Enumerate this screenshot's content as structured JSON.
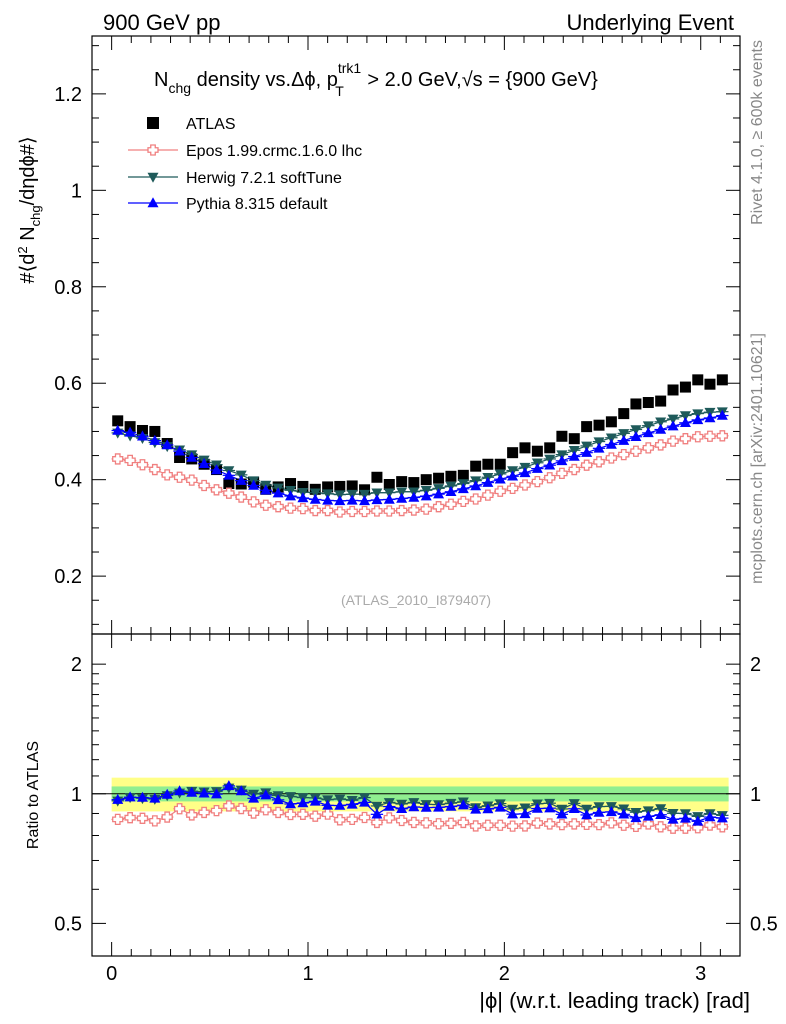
{
  "header": {
    "left": "900 GeV pp",
    "right": "Underlying Event"
  },
  "side_labels": {
    "rivet": "Rivet 4.1.0, ≥ 600k events",
    "mcplots": "mcplots.cern.ch [arXiv:2401.10621]"
  },
  "chart_data": [
    {
      "type": "scatter",
      "panel": "main",
      "title": {
        "prefix": "N",
        "sub1": "chg",
        "mid": " density vs.Δϕ, p",
        "sup": "trk1",
        "sub2": "T",
        "tail": " > 2.0 GeV,",
        "sqrt": "√s",
        "end": " = {900 GeV}"
      },
      "ylabel": "#⟨d² N_chg/dηdϕ#⟩",
      "xlim": [
        -0.1,
        3.2
      ],
      "ylim": [
        0.08,
        1.32
      ],
      "yticks": [
        "0.2",
        "0.4",
        "0.6",
        "0.8",
        "1",
        "1.2"
      ],
      "watermark": "(ATLAS_2010_I879407)",
      "x": [
        0.031,
        0.094,
        0.157,
        0.22,
        0.283,
        0.346,
        0.408,
        0.471,
        0.534,
        0.597,
        0.66,
        0.723,
        0.785,
        0.848,
        0.911,
        0.974,
        1.037,
        1.1,
        1.162,
        1.225,
        1.288,
        1.351,
        1.414,
        1.477,
        1.539,
        1.602,
        1.665,
        1.728,
        1.791,
        1.854,
        1.916,
        1.979,
        2.042,
        2.105,
        2.168,
        2.231,
        2.293,
        2.356,
        2.419,
        2.482,
        2.545,
        2.608,
        2.67,
        2.733,
        2.796,
        2.859,
        2.922,
        2.985,
        3.047,
        3.11
      ],
      "series": [
        {
          "name": "ATLAS",
          "color": "#000000",
          "marker": "square",
          "values": [
            0.522,
            0.51,
            0.502,
            0.5,
            0.475,
            0.446,
            0.443,
            0.432,
            0.421,
            0.392,
            0.391,
            0.395,
            0.38,
            0.385,
            0.392,
            0.386,
            0.38,
            0.385,
            0.386,
            0.387,
            0.379,
            0.405,
            0.39,
            0.396,
            0.394,
            0.4,
            0.403,
            0.407,
            0.409,
            0.428,
            0.432,
            0.432,
            0.456,
            0.466,
            0.459,
            0.466,
            0.49,
            0.485,
            0.51,
            0.513,
            0.52,
            0.537,
            0.557,
            0.56,
            0.563,
            0.586,
            0.592,
            0.607,
            0.598,
            0.607
          ]
        },
        {
          "name": "Epos 1.99.crmc.1.6.0 lhc",
          "color": "#f08080",
          "marker": "cross-open",
          "values": [
            0.443,
            0.44,
            0.431,
            0.421,
            0.41,
            0.405,
            0.399,
            0.388,
            0.379,
            0.372,
            0.364,
            0.354,
            0.347,
            0.344,
            0.341,
            0.34,
            0.336,
            0.336,
            0.333,
            0.334,
            0.334,
            0.335,
            0.335,
            0.336,
            0.337,
            0.339,
            0.344,
            0.349,
            0.355,
            0.36,
            0.368,
            0.376,
            0.382,
            0.389,
            0.396,
            0.404,
            0.413,
            0.421,
            0.43,
            0.437,
            0.445,
            0.452,
            0.459,
            0.466,
            0.472,
            0.48,
            0.485,
            0.489,
            0.49,
            0.491
          ]
        },
        {
          "name": "Herwig 7.2.1 softTune",
          "color": "#1e5a5a",
          "marker": "triangle-down",
          "values": [
            0.497,
            0.491,
            0.486,
            0.477,
            0.469,
            0.462,
            0.452,
            0.441,
            0.431,
            0.419,
            0.41,
            0.398,
            0.389,
            0.383,
            0.378,
            0.374,
            0.373,
            0.371,
            0.369,
            0.37,
            0.37,
            0.373,
            0.373,
            0.375,
            0.375,
            0.378,
            0.382,
            0.387,
            0.392,
            0.398,
            0.405,
            0.412,
            0.419,
            0.426,
            0.435,
            0.443,
            0.452,
            0.461,
            0.47,
            0.479,
            0.487,
            0.496,
            0.504,
            0.512,
            0.52,
            0.526,
            0.533,
            0.537,
            0.54,
            0.541
          ]
        },
        {
          "name": "Pythia 8.315 default",
          "color": "#0000ff",
          "marker": "triangle-up",
          "values": [
            0.502,
            0.498,
            0.49,
            0.481,
            0.472,
            0.459,
            0.446,
            0.433,
            0.42,
            0.409,
            0.398,
            0.388,
            0.378,
            0.372,
            0.366,
            0.362,
            0.359,
            0.357,
            0.356,
            0.357,
            0.356,
            0.358,
            0.359,
            0.361,
            0.363,
            0.366,
            0.37,
            0.375,
            0.381,
            0.387,
            0.394,
            0.401,
            0.407,
            0.414,
            0.423,
            0.43,
            0.439,
            0.448,
            0.456,
            0.465,
            0.473,
            0.481,
            0.489,
            0.497,
            0.504,
            0.511,
            0.518,
            0.524,
            0.528,
            0.533
          ]
        }
      ]
    },
    {
      "type": "scatter",
      "panel": "ratio",
      "ylabel": "Ratio to ATLAS",
      "xlabel": "|ϕ| (w.r.t. leading track) [rad]",
      "xticks": [
        "0",
        "1",
        "2",
        "3"
      ],
      "yticks": [
        "0.5",
        "1",
        "2"
      ],
      "yscale": "log",
      "ylim": [
        0.42,
        2.35
      ],
      "bands": {
        "stat_color": "#90ee90",
        "syst_color": "#ffff88",
        "stat_halfwidth": 0.04,
        "total_halfwidth": 0.09
      },
      "series": [
        {
          "name": "Epos 1.99.crmc.1.6.0 lhc",
          "values": [
            0.872,
            0.88,
            0.877,
            0.865,
            0.883,
            0.923,
            0.893,
            0.905,
            0.914,
            0.937,
            0.924,
            0.902,
            0.918,
            0.905,
            0.895,
            0.896,
            0.887,
            0.897,
            0.87,
            0.872,
            0.881,
            0.858,
            0.879,
            0.867,
            0.858,
            0.856,
            0.852,
            0.854,
            0.858,
            0.842,
            0.845,
            0.845,
            0.841,
            0.842,
            0.855,
            0.851,
            0.848,
            0.851,
            0.849,
            0.848,
            0.856,
            0.845,
            0.84,
            0.851,
            0.838,
            0.832,
            0.832,
            0.834,
            0.846,
            0.838
          ]
        },
        {
          "name": "Herwig 7.2.1 softTune",
          "values": [
            0.963,
            0.981,
            0.976,
            0.972,
            0.991,
            1.005,
            1.014,
            1.011,
            1.013,
            1.032,
            1.021,
            0.999,
            1.006,
            0.991,
            0.986,
            0.98,
            0.978,
            0.969,
            0.973,
            0.966,
            0.98,
            0.937,
            0.955,
            0.947,
            0.955,
            0.945,
            0.944,
            0.951,
            0.958,
            0.929,
            0.938,
            0.949,
            0.922,
            0.928,
            0.948,
            0.951,
            0.922,
            0.95,
            0.922,
            0.934,
            0.935,
            0.923,
            0.906,
            0.914,
            0.924,
            0.901,
            0.9,
            0.886,
            0.9,
            0.891
          ]
        },
        {
          "name": "Pythia 8.315 default",
          "values": [
            0.969,
            0.982,
            0.98,
            0.976,
            0.996,
            1.015,
            1.007,
            1.003,
            0.998,
            1.043,
            1.015,
            0.976,
            0.993,
            0.968,
            0.947,
            0.952,
            0.96,
            0.94,
            0.939,
            0.945,
            0.955,
            0.896,
            0.934,
            0.923,
            0.932,
            0.929,
            0.93,
            0.934,
            0.941,
            0.92,
            0.922,
            0.93,
            0.897,
            0.898,
            0.924,
            0.926,
            0.896,
            0.923,
            0.893,
            0.905,
            0.908,
            0.896,
            0.879,
            0.886,
            0.894,
            0.872,
            0.877,
            0.863,
            0.883,
            0.878
          ]
        }
      ]
    }
  ]
}
